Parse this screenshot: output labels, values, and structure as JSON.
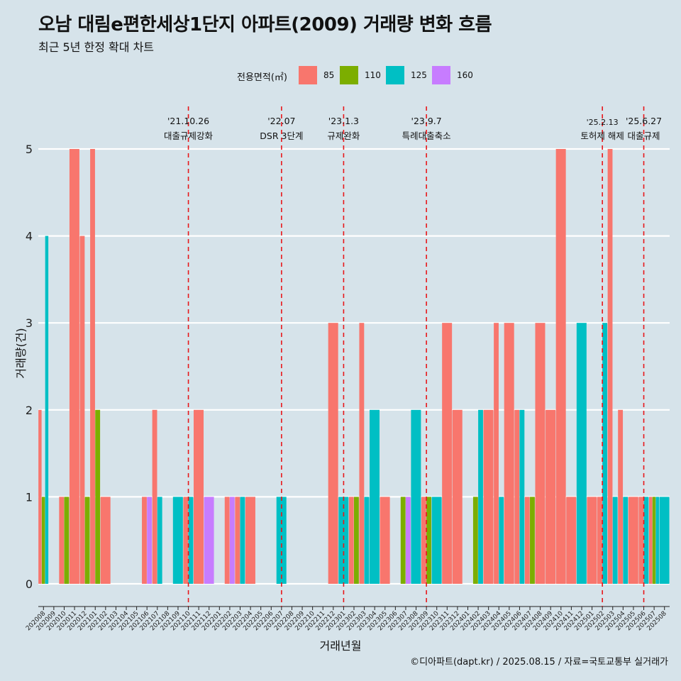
{
  "title": "오남 대림e편한세상1단지 아파트(2009) 거래량 변화 흐름",
  "subtitle": "최근 5년 한정 확대 차트",
  "legend": {
    "title": "전용면적(㎡)",
    "items": [
      {
        "label": "85",
        "color": "#f8766d"
      },
      {
        "label": "110",
        "color": "#7cae00"
      },
      {
        "label": "125",
        "color": "#00bfc4"
      },
      {
        "label": "160",
        "color": "#c77cff"
      }
    ]
  },
  "caption": "©디아파트(dapt.kr) / 2025.08.15 / 자료=국토교통부 실거래가",
  "chart_data": {
    "type": "bar",
    "xlabel": "거래년월",
    "ylabel": "거래량(건)",
    "ylim": [
      0,
      5
    ],
    "yticks": [
      0,
      1,
      2,
      3,
      4,
      5
    ],
    "categories": [
      "202008",
      "202009",
      "202010",
      "202011",
      "202012",
      "202101",
      "202102",
      "202103",
      "202104",
      "202105",
      "202106",
      "202107",
      "202108",
      "202109",
      "202110",
      "202111",
      "202112",
      "202201",
      "202202",
      "202203",
      "202204",
      "202205",
      "202206",
      "202207",
      "202208",
      "202209",
      "202210",
      "202211",
      "202212",
      "202301",
      "202302",
      "202303",
      "202304",
      "202305",
      "202306",
      "202307",
      "202308",
      "202309",
      "202310",
      "202311",
      "202312",
      "202401",
      "202402",
      "202403",
      "202404",
      "202405",
      "202406",
      "202407",
      "202408",
      "202409",
      "202410",
      "202411",
      "202412",
      "202501",
      "202502",
      "202503",
      "202504",
      "202505",
      "202506",
      "202507",
      "202508"
    ],
    "series": [
      {
        "name": "85",
        "color": "#f8766d",
        "values": [
          2,
          0,
          1,
          5,
          4,
          5,
          1,
          0,
          0,
          0,
          1,
          2,
          0,
          0,
          1,
          2,
          0,
          0,
          1,
          1,
          1,
          0,
          0,
          0,
          0,
          0,
          0,
          0,
          3,
          0,
          1,
          3,
          0,
          1,
          0,
          0,
          0,
          1,
          0,
          3,
          2,
          0,
          0,
          2,
          3,
          3,
          2,
          1,
          3,
          2,
          5,
          1,
          0,
          1,
          1,
          5,
          2,
          1,
          1,
          1,
          0
        ]
      },
      {
        "name": "110",
        "color": "#7cae00",
        "values": [
          1,
          0,
          1,
          0,
          1,
          2,
          0,
          0,
          0,
          0,
          0,
          0,
          0,
          0,
          0,
          0,
          0,
          0,
          0,
          0,
          0,
          0,
          0,
          0,
          0,
          0,
          0,
          0,
          0,
          0,
          1,
          0,
          0,
          0,
          0,
          1,
          0,
          1,
          0,
          0,
          0,
          0,
          1,
          0,
          0,
          0,
          0,
          1,
          0,
          0,
          0,
          0,
          0,
          0,
          0,
          0,
          0,
          0,
          0,
          1,
          0
        ]
      },
      {
        "name": "125",
        "color": "#00bfc4",
        "values": [
          4,
          0,
          0,
          0,
          0,
          0,
          0,
          0,
          0,
          0,
          0,
          1,
          0,
          1,
          1,
          0,
          0,
          0,
          0,
          1,
          0,
          0,
          0,
          1,
          0,
          0,
          0,
          0,
          0,
          1,
          0,
          1,
          2,
          0,
          0,
          0,
          2,
          0,
          1,
          0,
          0,
          0,
          2,
          0,
          1,
          0,
          2,
          0,
          0,
          0,
          0,
          0,
          3,
          0,
          3,
          1,
          1,
          0,
          1,
          1,
          1
        ]
      },
      {
        "name": "160",
        "color": "#c77cff",
        "values": [
          0,
          0,
          0,
          0,
          0,
          0,
          0,
          0,
          0,
          0,
          1,
          0,
          0,
          0,
          0,
          0,
          1,
          0,
          1,
          0,
          0,
          0,
          0,
          0,
          0,
          0,
          0,
          0,
          0,
          0,
          0,
          0,
          0,
          0,
          0,
          1,
          0,
          0,
          0,
          0,
          0,
          0,
          0,
          0,
          0,
          0,
          0,
          0,
          0,
          0,
          0,
          0,
          0,
          0,
          0,
          0,
          0,
          0,
          0,
          0,
          0
        ]
      }
    ],
    "events": [
      {
        "date": "'21.10.26",
        "label": "대출규제강화",
        "after": "202110"
      },
      {
        "date": "'22.07",
        "label": "DSR 3단계",
        "after": "202207"
      },
      {
        "date": "'23.1.3",
        "label": "규제완화",
        "after": "202301"
      },
      {
        "date": "'23.9.7",
        "label": "특례대출축소",
        "after": "202309"
      },
      {
        "date": "'25.2.13",
        "label": "토허제 해제",
        "after": "202502"
      },
      {
        "date": "'25.6.27",
        "label": "대출규제",
        "after": "202506"
      }
    ]
  }
}
